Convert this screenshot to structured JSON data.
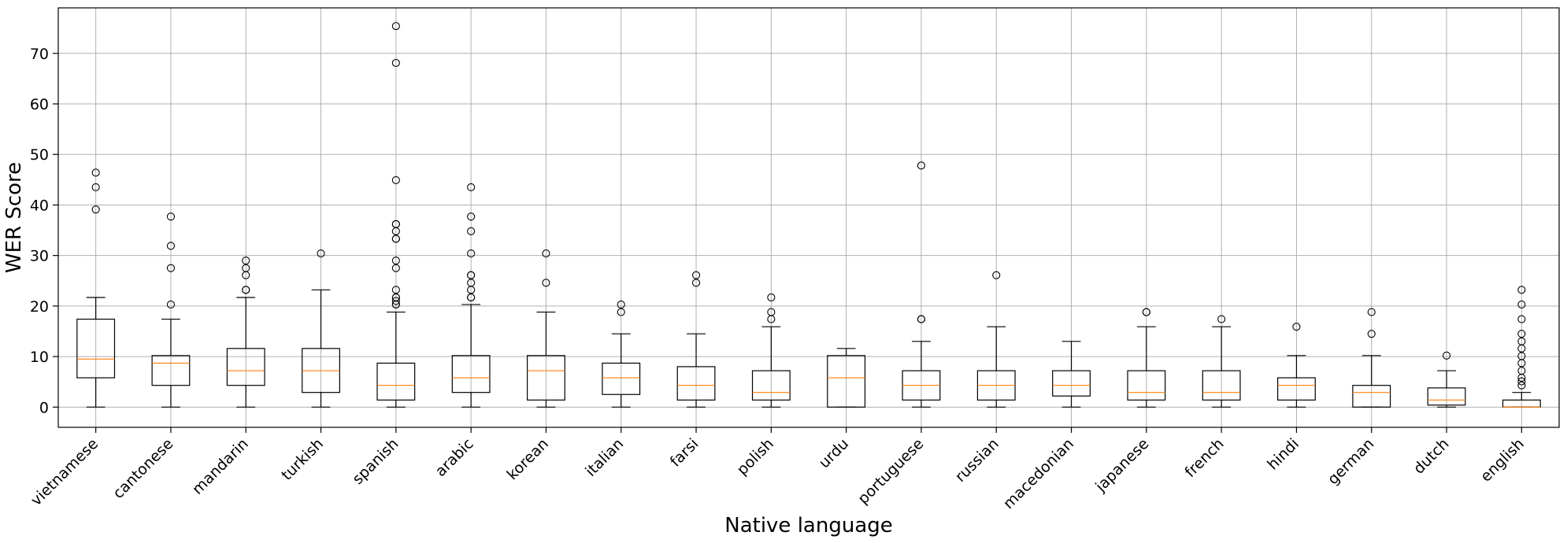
{
  "chart_data": {
    "type": "box",
    "xlabel": "Native language",
    "ylabel": "WER Score",
    "ylim": [
      -4,
      79
    ],
    "yticks": [
      0,
      10,
      20,
      30,
      40,
      50,
      60,
      70
    ],
    "grid": true,
    "colors": {
      "box": "#000000",
      "median": "#ff7f0e",
      "grid": "#b0b0b0"
    },
    "categories": [
      "vietnamese",
      "cantonese",
      "mandarin",
      "turkish",
      "spanish",
      "arabic",
      "korean",
      "italian",
      "farsi",
      "polish",
      "urdu",
      "portuguese",
      "russian",
      "macedonian",
      "japanese",
      "french",
      "hindi",
      "german",
      "dutch",
      "english"
    ],
    "boxes": [
      {
        "whislo": 0,
        "q1": 5.8,
        "med": 9.5,
        "q3": 17.4,
        "whishi": 21.7,
        "fliers": [
          39.1,
          43.5,
          46.4
        ]
      },
      {
        "whislo": 0,
        "q1": 4.3,
        "med": 8.7,
        "q3": 10.2,
        "whishi": 17.4,
        "fliers": [
          20.3,
          27.5,
          31.9,
          37.7
        ]
      },
      {
        "whislo": 0,
        "q1": 4.3,
        "med": 7.2,
        "q3": 11.6,
        "whishi": 21.7,
        "fliers": [
          23.2,
          23.2,
          26.1,
          27.5,
          29.0
        ]
      },
      {
        "whislo": 0,
        "q1": 2.9,
        "med": 7.2,
        "q3": 11.6,
        "whishi": 23.2,
        "fliers": [
          30.4
        ]
      },
      {
        "whislo": 0,
        "q1": 1.4,
        "med": 4.3,
        "q3": 8.7,
        "whishi": 18.8,
        "fliers": [
          20.3,
          20.3,
          21.0,
          21.7,
          21.7,
          23.2,
          27.5,
          29.0,
          33.3,
          33.3,
          34.8,
          36.2,
          36.2,
          44.9,
          68.1,
          75.4
        ]
      },
      {
        "whislo": 0,
        "q1": 2.9,
        "med": 5.8,
        "q3": 10.2,
        "whishi": 20.3,
        "fliers": [
          21.7,
          21.7,
          23.2,
          24.6,
          26.1,
          26.1,
          30.4,
          34.8,
          37.7,
          43.5
        ]
      },
      {
        "whislo": 0,
        "q1": 1.4,
        "med": 7.2,
        "q3": 10.2,
        "whishi": 18.8,
        "fliers": [
          24.6,
          30.4
        ]
      },
      {
        "whislo": 0,
        "q1": 2.5,
        "med": 5.8,
        "q3": 8.7,
        "whishi": 14.5,
        "fliers": [
          18.8,
          20.3
        ]
      },
      {
        "whislo": 0,
        "q1": 1.4,
        "med": 4.3,
        "q3": 8.0,
        "whishi": 14.5,
        "fliers": [
          24.6,
          26.1
        ]
      },
      {
        "whislo": 0,
        "q1": 1.4,
        "med": 2.9,
        "q3": 7.2,
        "whishi": 15.9,
        "fliers": [
          17.4,
          18.8,
          21.7
        ]
      },
      {
        "whislo": 0,
        "q1": 0,
        "med": 5.8,
        "q3": 10.2,
        "whishi": 11.6,
        "fliers": []
      },
      {
        "whislo": 0,
        "q1": 1.4,
        "med": 4.3,
        "q3": 7.2,
        "whishi": 13.0,
        "fliers": [
          17.4,
          17.4,
          47.8
        ]
      },
      {
        "whislo": 0,
        "q1": 1.4,
        "med": 4.3,
        "q3": 7.2,
        "whishi": 15.9,
        "fliers": [
          26.1
        ]
      },
      {
        "whislo": 0,
        "q1": 2.2,
        "med": 4.3,
        "q3": 7.2,
        "whishi": 13.0,
        "fliers": []
      },
      {
        "whislo": 0,
        "q1": 1.4,
        "med": 2.9,
        "q3": 7.2,
        "whishi": 15.9,
        "fliers": [
          18.8,
          18.8
        ]
      },
      {
        "whislo": 0,
        "q1": 1.4,
        "med": 2.9,
        "q3": 7.2,
        "whishi": 15.9,
        "fliers": [
          17.4
        ]
      },
      {
        "whislo": 0,
        "q1": 1.4,
        "med": 4.3,
        "q3": 5.8,
        "whishi": 10.2,
        "fliers": [
          15.9
        ]
      },
      {
        "whislo": 0,
        "q1": 0,
        "med": 2.9,
        "q3": 4.3,
        "whishi": 10.2,
        "fliers": [
          14.5,
          18.8
        ]
      },
      {
        "whislo": 0,
        "q1": 0.4,
        "med": 1.4,
        "q3": 3.8,
        "whishi": 7.2,
        "fliers": [
          10.2
        ]
      },
      {
        "whislo": 0,
        "q1": 0,
        "med": 0,
        "q3": 1.4,
        "whishi": 2.9,
        "fliers": [
          4.3,
          5.1,
          5.8,
          7.2,
          8.7,
          10.1,
          11.6,
          13.0,
          14.5,
          17.4,
          20.3,
          23.2
        ]
      }
    ]
  }
}
